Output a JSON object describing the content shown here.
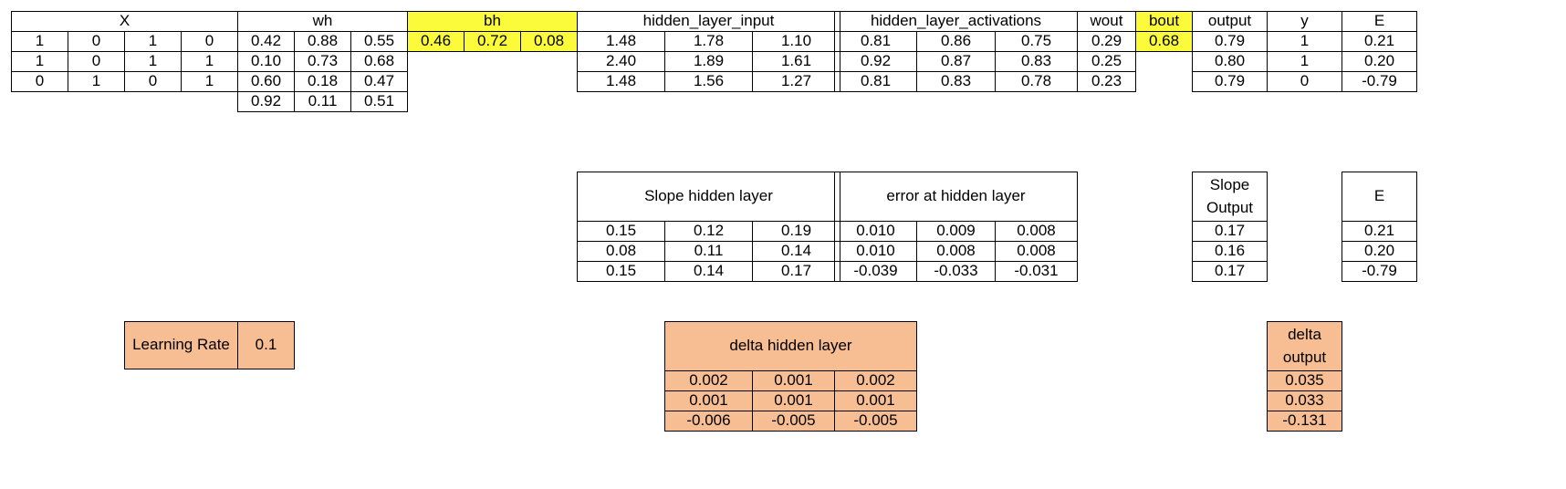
{
  "colors": {
    "highlight": "#fbfb3c",
    "accent": "#f7bd93",
    "border": "#000000"
  },
  "X": {
    "header": "X",
    "rows": [
      [
        "1",
        "0",
        "1",
        "0"
      ],
      [
        "1",
        "0",
        "1",
        "1"
      ],
      [
        "0",
        "1",
        "0",
        "1"
      ]
    ]
  },
  "wh": {
    "header": "wh",
    "rows": [
      [
        "0.42",
        "0.88",
        "0.55"
      ],
      [
        "0.10",
        "0.73",
        "0.68"
      ],
      [
        "0.60",
        "0.18",
        "0.47"
      ],
      [
        "0.92",
        "0.11",
        "0.51"
      ]
    ]
  },
  "bh": {
    "header": "bh",
    "rows": [
      [
        "0.46",
        "0.72",
        "0.08"
      ]
    ]
  },
  "hidden_layer_input": {
    "header": "hidden_layer_input",
    "rows": [
      [
        "1.48",
        "1.78",
        "1.10"
      ],
      [
        "2.40",
        "1.89",
        "1.61"
      ],
      [
        "1.48",
        "1.56",
        "1.27"
      ]
    ]
  },
  "hidden_layer_activations": {
    "header": "hidden_layer_activations",
    "rows": [
      [
        "0.81",
        "0.86",
        "0.75"
      ],
      [
        "0.92",
        "0.87",
        "0.83"
      ],
      [
        "0.81",
        "0.83",
        "0.78"
      ]
    ]
  },
  "wout": {
    "header": "wout",
    "rows": [
      [
        "0.29"
      ],
      [
        "0.25"
      ],
      [
        "0.23"
      ]
    ]
  },
  "bout": {
    "header": "bout",
    "rows": [
      [
        "0.68"
      ]
    ]
  },
  "output": {
    "header": "output",
    "rows": [
      [
        "0.79"
      ],
      [
        "0.80"
      ],
      [
        "0.79"
      ]
    ]
  },
  "y": {
    "header": "y",
    "rows": [
      [
        "1"
      ],
      [
        "1"
      ],
      [
        "0"
      ]
    ]
  },
  "E": {
    "header": "E",
    "rows": [
      [
        "0.21"
      ],
      [
        "0.20"
      ],
      [
        "-0.79"
      ]
    ]
  },
  "slope_hidden_layer": {
    "header": "Slope hidden layer",
    "rows": [
      [
        "0.15",
        "0.12",
        "0.19"
      ],
      [
        "0.08",
        "0.11",
        "0.14"
      ],
      [
        "0.15",
        "0.14",
        "0.17"
      ]
    ]
  },
  "error_at_hidden_layer": {
    "header": "error at hidden layer",
    "rows": [
      [
        "0.010",
        "0.009",
        "0.008"
      ],
      [
        "0.010",
        "0.008",
        "0.008"
      ],
      [
        "-0.039",
        "-0.033",
        "-0.031"
      ]
    ]
  },
  "slope_output": {
    "header": "Slope Output",
    "rows": [
      [
        "0.17"
      ],
      [
        "0.16"
      ],
      [
        "0.17"
      ]
    ]
  },
  "E2": {
    "header": "E",
    "rows": [
      [
        "0.21"
      ],
      [
        "0.20"
      ],
      [
        "-0.79"
      ]
    ]
  },
  "learning_rate": {
    "label": "Learning Rate",
    "value": "0.1"
  },
  "delta_hidden_layer": {
    "header": "delta hidden layer",
    "rows": [
      [
        "0.002",
        "0.001",
        "0.002"
      ],
      [
        "0.001",
        "0.001",
        "0.001"
      ],
      [
        "-0.006",
        "-0.005",
        "-0.005"
      ]
    ]
  },
  "delta_output": {
    "header": "delta output",
    "rows": [
      [
        "0.035"
      ],
      [
        "0.033"
      ],
      [
        "-0.131"
      ]
    ]
  }
}
